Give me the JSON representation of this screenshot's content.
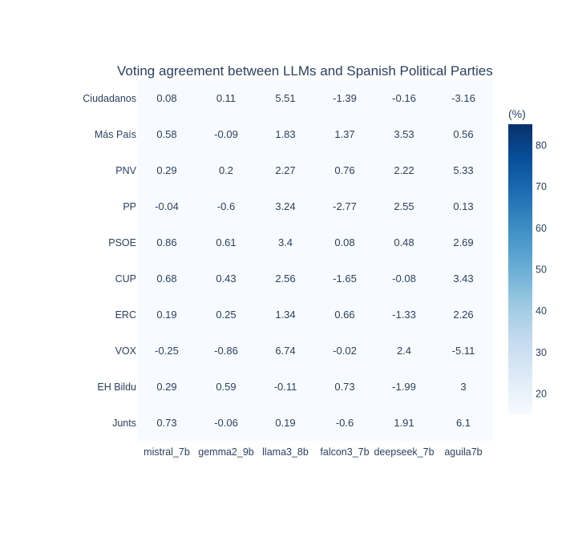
{
  "chart_data": {
    "type": "heatmap",
    "title": "Voting agreement between LLMs and Spanish Political Parties",
    "x": [
      "mistral_7b",
      "gemma2_9b",
      "llama3_8b",
      "falcon3_7b",
      "deepseek_7b",
      "aguila7b"
    ],
    "y": [
      "Ciudadanos",
      "Más País",
      "PNV",
      "PP",
      "PSOE",
      "CUP",
      "ERC",
      "VOX",
      "EH Bildu",
      "Junts"
    ],
    "z": [
      [
        0.08,
        0.11,
        5.51,
        -1.39,
        -0.16,
        -3.16
      ],
      [
        0.58,
        -0.09,
        1.83,
        1.37,
        3.53,
        0.56
      ],
      [
        0.29,
        0.2,
        2.27,
        0.76,
        2.22,
        5.33
      ],
      [
        -0.04,
        -0.6,
        3.24,
        -2.77,
        2.55,
        0.13
      ],
      [
        0.86,
        0.61,
        3.4,
        0.08,
        0.48,
        2.69
      ],
      [
        0.68,
        0.43,
        2.56,
        -1.65,
        -0.08,
        3.43
      ],
      [
        0.19,
        0.25,
        1.34,
        0.66,
        -1.33,
        2.26
      ],
      [
        -0.25,
        -0.86,
        6.74,
        -0.02,
        2.4,
        -5.11
      ],
      [
        0.29,
        0.59,
        -0.11,
        0.73,
        -1.99,
        3
      ],
      [
        0.73,
        -0.06,
        0.19,
        -0.6,
        1.91,
        6.1
      ]
    ],
    "colorbar": {
      "title": "(%)",
      "range": [
        15,
        85
      ],
      "ticks": [
        20,
        30,
        40,
        50,
        60,
        70,
        80
      ],
      "colorscale": "Blues"
    }
  }
}
